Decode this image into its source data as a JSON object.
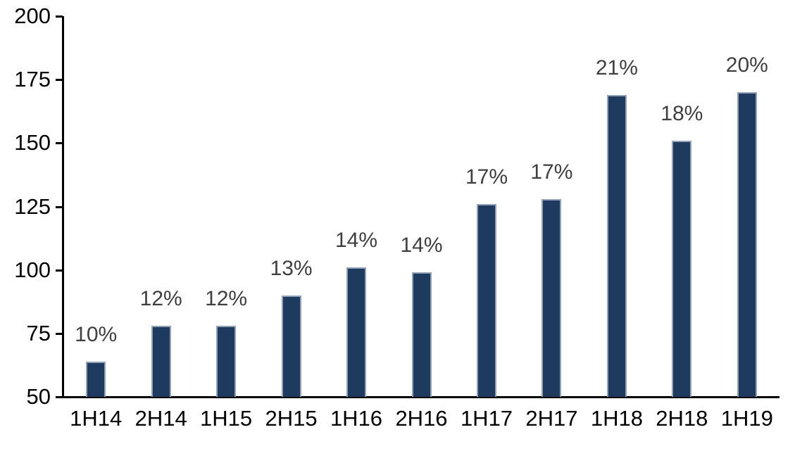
{
  "chart_data": {
    "type": "bar",
    "title": "",
    "xlabel": "",
    "ylabel": "",
    "categories": [
      "1H14",
      "2H14",
      "1H15",
      "2H15",
      "1H16",
      "2H16",
      "1H17",
      "2H17",
      "1H18",
      "2H18",
      "1H19"
    ],
    "values": [
      64,
      78,
      78,
      90,
      101,
      99,
      126,
      128,
      169,
      151,
      170
    ],
    "data_labels": [
      "10%",
      "12%",
      "12%",
      "13%",
      "14%",
      "14%",
      "17%",
      "17%",
      "21%",
      "18%",
      "20%"
    ],
    "ylim": [
      50,
      200
    ],
    "yticks": [
      50,
      75,
      100,
      125,
      150,
      175,
      200
    ],
    "grid": false,
    "legend": "none",
    "colors": {
      "bar_fill": "#1F3A5F",
      "bar_border": "#90A1B9",
      "data_label": "#3F3F3F",
      "axis": "#000000",
      "tick_label": "#000000",
      "background": "#FFFFFF"
    }
  }
}
